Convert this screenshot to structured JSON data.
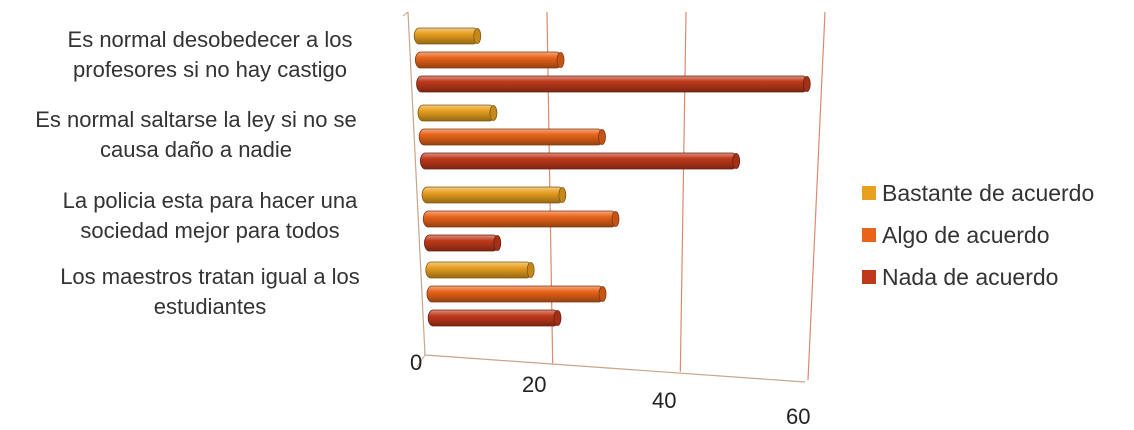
{
  "chart_data": {
    "type": "bar",
    "orientation": "horizontal",
    "style": "3d-cylinder",
    "categories": [
      "Es normal desobedecer a los profesores si no hay castigo",
      "Es normal saltarse la ley si no se causa daño a nadie",
      "La policia esta para hacer una sociedad mejor para todos",
      "Los maestros tratan igual a los estudiantes"
    ],
    "category_lines": [
      [
        "Es normal desobedecer a los",
        "profesores si no hay castigo"
      ],
      [
        "Es normal saltarse la ley si no se",
        "causa daño a nadie"
      ],
      [
        "La policia esta para hacer una",
        "sociedad mejor para todos"
      ],
      [
        "Los maestros tratan igual a los",
        "estudiantes"
      ]
    ],
    "series": [
      {
        "name": "Bastante de acuerdo",
        "color": "#E8A020",
        "values": [
          10,
          12,
          22,
          17
        ]
      },
      {
        "name": "Algo de acuerdo",
        "color": "#E8641A",
        "values": [
          22,
          28,
          30,
          28
        ]
      },
      {
        "name": "Nada de acuerdo",
        "color": "#C0391B",
        "values": [
          58,
          48,
          12,
          21
        ]
      }
    ],
    "xlim": [
      0,
      60
    ],
    "ticks": [
      "0",
      "20",
      "40",
      "60"
    ],
    "grid": true,
    "legend_position": "right"
  }
}
